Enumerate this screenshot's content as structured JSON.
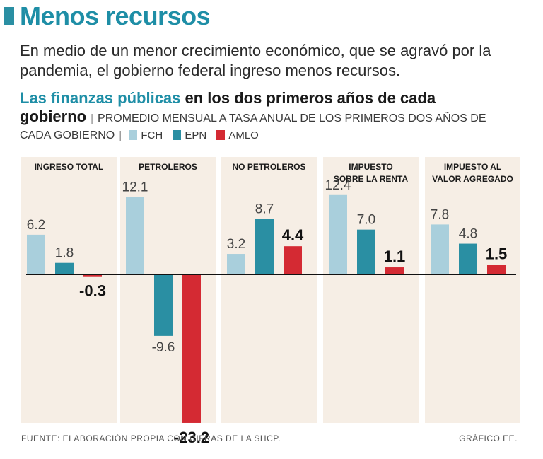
{
  "header": {
    "title": "Menos recursos",
    "subtitle": "En medio de un menor crecimiento económico, que se agravó por la pandemia, el gobierno federal ingreso menos recursos."
  },
  "chart_header": {
    "title_accent": "Las finanzas públicas",
    "title_rest_1": " en los dos primeros años de cada",
    "title_rest_2": "gobierno",
    "description_1": "PROMEDIO MENSUAL A TASA ANUAL DE LOS PRIMEROS DOS AÑOS DE",
    "description_2": "CADA GOBIERNO"
  },
  "footer": {
    "source": "FUENTE: ELABORACIÓN PROPIA CON CIFRAS DE LA SHCP.",
    "credit": "GRÁFICO EE."
  },
  "colors": {
    "FCH": "#a9cfdc",
    "EPN": "#2a8fa3",
    "AMLO": "#d42a33",
    "panel": "#f6eee5",
    "accent": "#1e8ea6"
  },
  "chart_data": {
    "type": "bar",
    "title": "Las finanzas públicas en los dos primeros años de cada gobierno",
    "ylabel": "",
    "ylim": [
      -23.2,
      12.4
    ],
    "legend": [
      "FCH",
      "EPN",
      "AMLO"
    ],
    "categories": [
      [
        "INGRESO TOTAL"
      ],
      [
        "PETROLEROS"
      ],
      [
        "NO PETROLEROS"
      ],
      [
        "IMPUESTO",
        "SOBRE LA RENTA"
      ],
      [
        "IMPUESTO AL",
        "VALOR AGREGADO"
      ]
    ],
    "series": [
      {
        "name": "FCH",
        "values": [
          6.2,
          12.1,
          3.2,
          12.4,
          7.8
        ],
        "labels": [
          "6.2",
          "12.1",
          "3.2",
          "12.4",
          "7.8"
        ]
      },
      {
        "name": "EPN",
        "values": [
          1.8,
          -9.6,
          8.7,
          7.0,
          4.8
        ],
        "labels": [
          "1.8",
          "-9.6",
          "8.7",
          "7.0",
          "4.8"
        ]
      },
      {
        "name": "AMLO",
        "values": [
          -0.3,
          -23.2,
          4.4,
          1.1,
          1.5
        ],
        "labels": [
          "-0.3",
          "-23.2",
          "4.4",
          "1.1",
          "1.5"
        ]
      }
    ]
  }
}
